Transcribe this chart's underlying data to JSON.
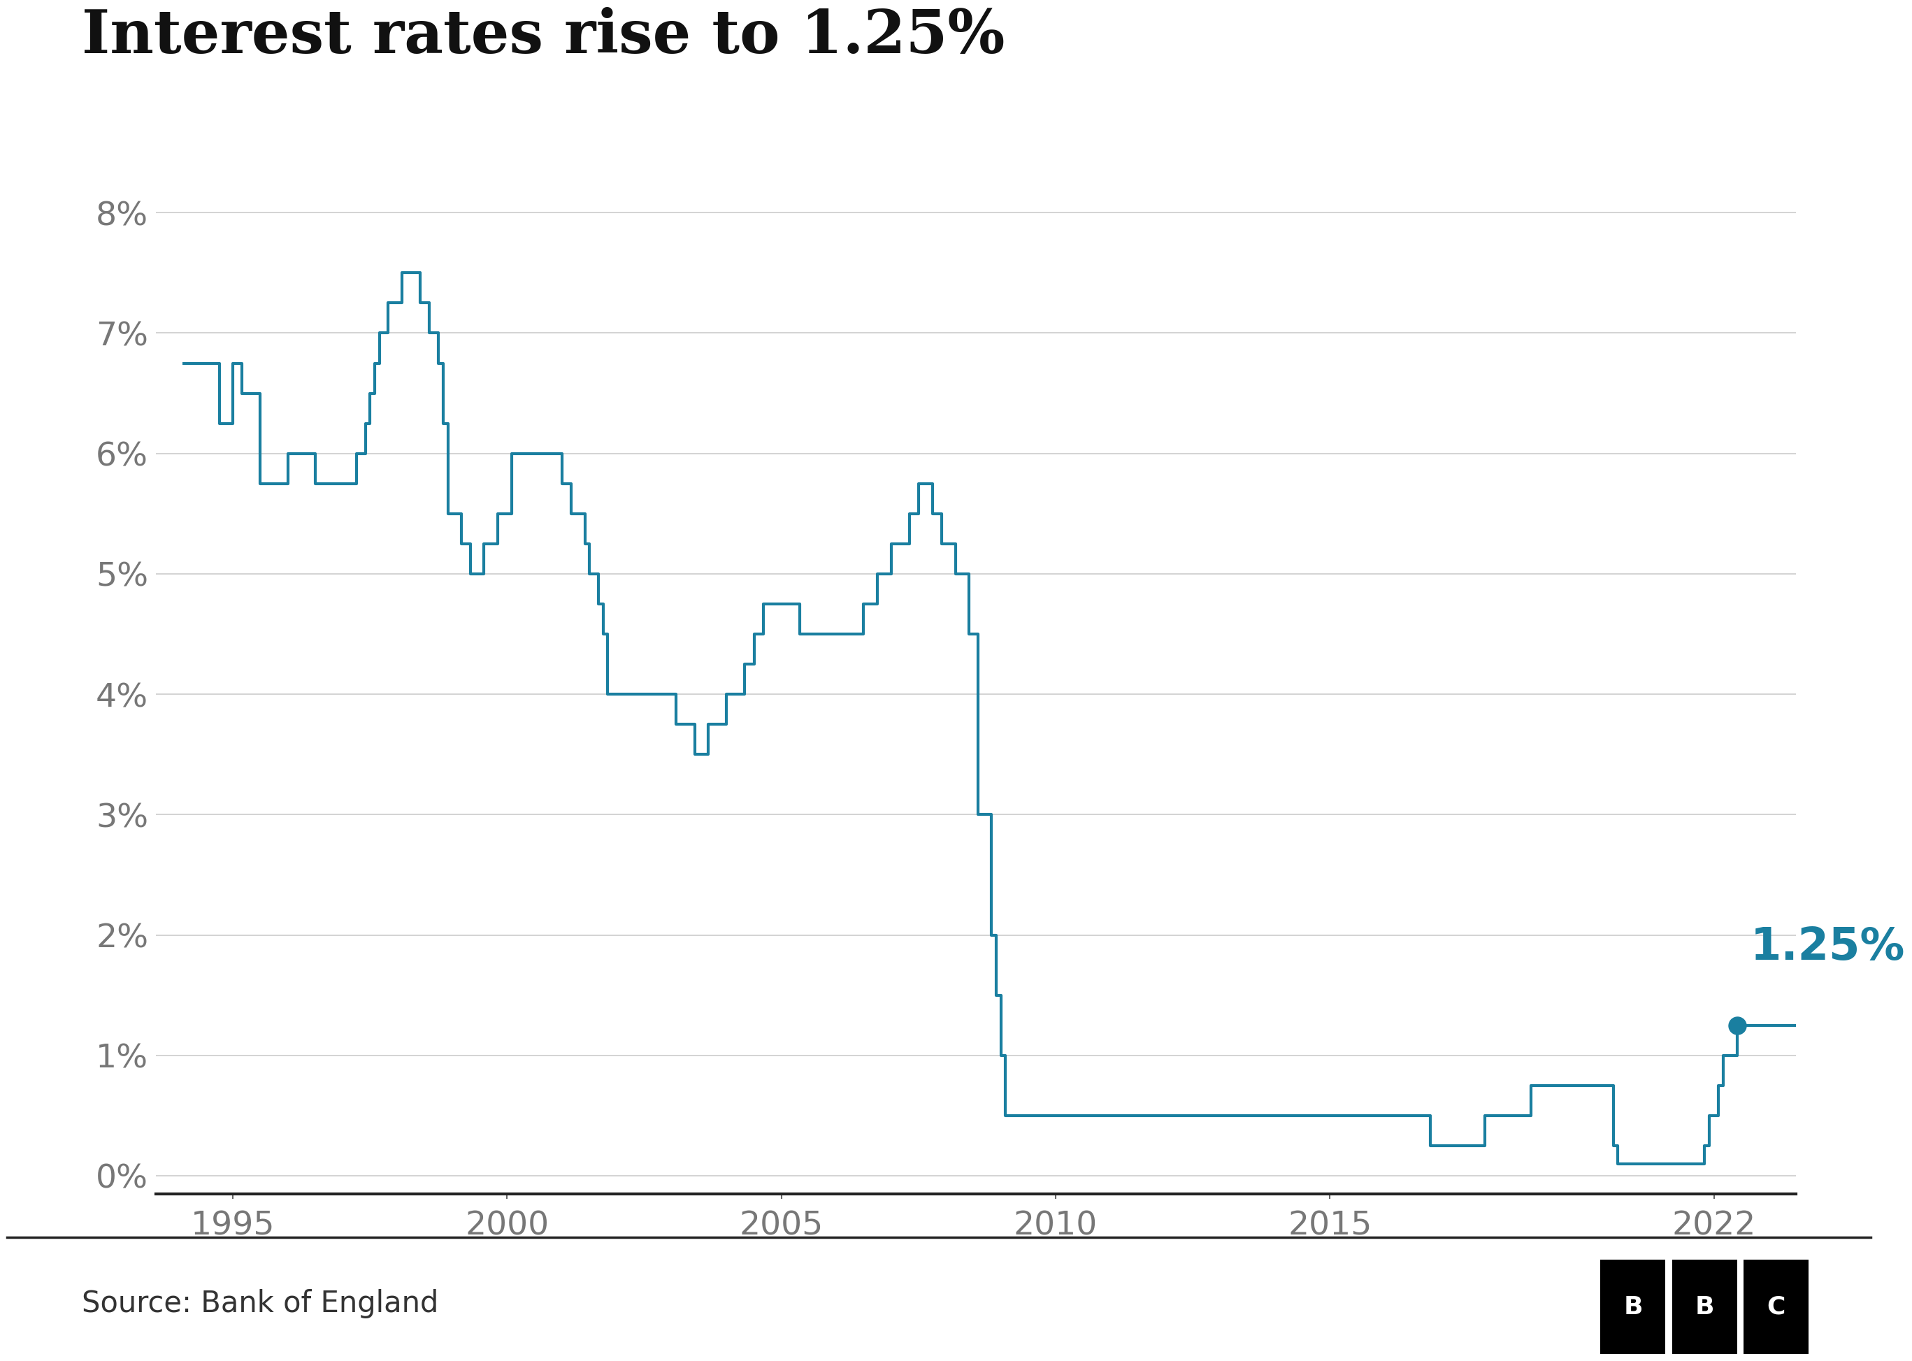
{
  "title": "Interest rates rise to 1.25%",
  "source": "Source: Bank of England",
  "line_color": "#1a7fa0",
  "annotation_color": "#1a7fa0",
  "background_color": "#ffffff",
  "annotation_label": "1.25%",
  "annotation_value": 1.25,
  "ylim": [
    -0.15,
    8.8
  ],
  "xlim": [
    1993.6,
    2023.5
  ],
  "yticks": [
    0,
    1,
    2,
    3,
    4,
    5,
    6,
    7,
    8
  ],
  "ytick_labels": [
    "0%",
    "1%",
    "2%",
    "3%",
    "4%",
    "5%",
    "6%",
    "7%",
    "8%"
  ],
  "xticks": [
    1995,
    2000,
    2005,
    2010,
    2015,
    2022
  ],
  "rate_data": [
    [
      1994.08,
      6.75
    ],
    [
      1994.58,
      6.75
    ],
    [
      1994.75,
      6.25
    ],
    [
      1995.0,
      6.75
    ],
    [
      1995.17,
      6.5
    ],
    [
      1995.5,
      5.75
    ],
    [
      1995.67,
      5.75
    ],
    [
      1996.0,
      6.0
    ],
    [
      1996.5,
      5.75
    ],
    [
      1997.25,
      6.0
    ],
    [
      1997.42,
      6.25
    ],
    [
      1997.5,
      6.5
    ],
    [
      1997.58,
      6.75
    ],
    [
      1997.67,
      7.0
    ],
    [
      1997.83,
      7.25
    ],
    [
      1998.08,
      7.5
    ],
    [
      1998.42,
      7.25
    ],
    [
      1998.58,
      7.0
    ],
    [
      1998.75,
      6.75
    ],
    [
      1998.83,
      6.25
    ],
    [
      1998.92,
      5.5
    ],
    [
      1999.0,
      5.5
    ],
    [
      1999.17,
      5.25
    ],
    [
      1999.33,
      5.0
    ],
    [
      1999.58,
      5.25
    ],
    [
      1999.83,
      5.5
    ],
    [
      2000.08,
      6.0
    ],
    [
      2001.0,
      5.75
    ],
    [
      2001.17,
      5.5
    ],
    [
      2001.42,
      5.25
    ],
    [
      2001.5,
      5.0
    ],
    [
      2001.67,
      4.75
    ],
    [
      2001.75,
      4.5
    ],
    [
      2001.83,
      4.0
    ],
    [
      2003.08,
      3.75
    ],
    [
      2003.42,
      3.5
    ],
    [
      2003.67,
      3.75
    ],
    [
      2004.0,
      4.0
    ],
    [
      2004.33,
      4.25
    ],
    [
      2004.5,
      4.5
    ],
    [
      2004.67,
      4.75
    ],
    [
      2005.33,
      4.5
    ],
    [
      2006.5,
      4.75
    ],
    [
      2006.75,
      5.0
    ],
    [
      2007.0,
      5.25
    ],
    [
      2007.33,
      5.5
    ],
    [
      2007.5,
      5.75
    ],
    [
      2007.75,
      5.5
    ],
    [
      2007.92,
      5.25
    ],
    [
      2008.17,
      5.0
    ],
    [
      2008.42,
      4.5
    ],
    [
      2008.58,
      3.0
    ],
    [
      2008.83,
      2.0
    ],
    [
      2008.92,
      1.5
    ],
    [
      2009.0,
      1.0
    ],
    [
      2009.08,
      0.5
    ],
    [
      2016.75,
      0.5
    ],
    [
      2016.83,
      0.25
    ],
    [
      2017.83,
      0.5
    ],
    [
      2018.67,
      0.75
    ],
    [
      2020.17,
      0.25
    ],
    [
      2020.25,
      0.1
    ],
    [
      2021.83,
      0.25
    ],
    [
      2021.92,
      0.5
    ],
    [
      2022.08,
      0.75
    ],
    [
      2022.17,
      1.0
    ],
    [
      2022.42,
      1.25
    ]
  ],
  "line_width": 3.0,
  "marker_size": 18,
  "title_fontsize": 62,
  "tick_fontsize": 34,
  "annotation_fontsize": 46,
  "source_fontsize": 30
}
